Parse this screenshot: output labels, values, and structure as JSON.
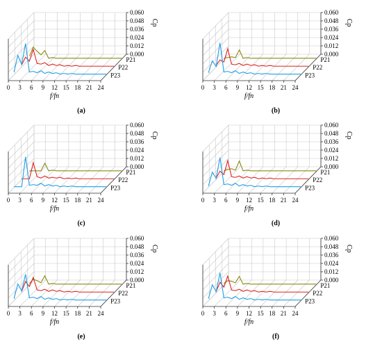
{
  "layout_common": {
    "type": "line",
    "x_ticks": [
      "0",
      "3",
      "6",
      "9",
      "12",
      "15",
      "18",
      "21",
      "24"
    ],
    "z_ticks": [
      "0.060",
      "0.048",
      "0.036",
      "0.024",
      "0.012",
      "0.000"
    ],
    "xlabel": "f/fn",
    "zlabel": "Cp",
    "series_labels": [
      "P21",
      "P22",
      "P23"
    ]
  },
  "series_colors": {
    "P21": "#8a8a10",
    "P22": "#e02020",
    "P23": "#1e9ee6"
  },
  "chart_data": [
    {
      "type": "line",
      "caption": "(a)",
      "xlabel": "f/fn",
      "zlabel": "Cp",
      "xlim": [
        0,
        24
      ],
      "zlim": [
        0,
        0.06
      ],
      "series": [
        {
          "name": "P21",
          "x": [
            0,
            1,
            2,
            3,
            4,
            5,
            6,
            7,
            8,
            9,
            10,
            11,
            12,
            13,
            14,
            15,
            16,
            17,
            18,
            19,
            20,
            21,
            22,
            23,
            24
          ],
          "values": [
            0.004,
            0.017,
            0.011,
            0.006,
            0.012,
            0.001,
            0.002,
            0.001,
            0.001,
            0.001,
            0.001,
            0.001,
            0.001,
            0.001,
            0.001,
            0.001,
            0.001,
            0.001,
            0.001,
            0.001,
            0.001,
            0.001,
            0.001,
            0.001,
            0.001
          ]
        },
        {
          "name": "P22",
          "x": [
            0,
            1,
            2,
            3,
            4,
            5,
            6,
            7,
            8,
            9,
            10,
            11,
            12,
            13,
            14,
            15,
            16,
            17,
            18,
            19,
            20,
            21,
            22,
            23,
            24
          ],
          "values": [
            0.003,
            0.014,
            0.008,
            0.025,
            0.005,
            0.004,
            0.006,
            0.002,
            0.004,
            0.002,
            0.003,
            0.001,
            0.002,
            0.001,
            0.002,
            0.001,
            0.001,
            0.001,
            0.001,
            0.001,
            0.001,
            0.001,
            0.001,
            0.001,
            0.001
          ]
        },
        {
          "name": "P23",
          "x": [
            0,
            1,
            2,
            3,
            4,
            5,
            6,
            7,
            8,
            9,
            10,
            11,
            12,
            13,
            14,
            15,
            16,
            17,
            18,
            19,
            20,
            21,
            22,
            23,
            24
          ],
          "values": [
            0.004,
            0.028,
            0.015,
            0.045,
            0.004,
            0.005,
            0.003,
            0.006,
            0.002,
            0.004,
            0.002,
            0.003,
            0.001,
            0.002,
            0.001,
            0.002,
            0.001,
            0.001,
            0.001,
            0.001,
            0.001,
            0.001,
            0.001,
            0.001,
            0.001
          ]
        }
      ]
    },
    {
      "type": "line",
      "caption": "(b)",
      "xlabel": "f/fn",
      "zlabel": "Cp",
      "xlim": [
        0,
        24
      ],
      "zlim": [
        0,
        0.06
      ],
      "series": [
        {
          "name": "P21",
          "x": [
            0,
            1,
            2,
            3,
            4,
            5,
            6,
            7,
            8,
            9,
            10,
            11,
            12,
            13,
            14,
            15,
            16,
            17,
            18,
            19,
            20,
            21,
            22,
            23,
            24
          ],
          "values": [
            0.001,
            0.002,
            0.003,
            0.002,
            0.013,
            0.001,
            0.002,
            0.001,
            0.001,
            0.001,
            0.001,
            0.001,
            0.001,
            0.001,
            0.001,
            0.001,
            0.001,
            0.001,
            0.001,
            0.001,
            0.001,
            0.001,
            0.001,
            0.001,
            0.001
          ]
        },
        {
          "name": "P22",
          "x": [
            0,
            1,
            2,
            3,
            4,
            5,
            6,
            7,
            8,
            9,
            10,
            11,
            12,
            13,
            14,
            15,
            16,
            17,
            18,
            19,
            20,
            21,
            22,
            23,
            24
          ],
          "values": [
            0.002,
            0.01,
            0.007,
            0.026,
            0.004,
            0.003,
            0.005,
            0.002,
            0.004,
            0.002,
            0.003,
            0.001,
            0.002,
            0.001,
            0.002,
            0.001,
            0.001,
            0.001,
            0.001,
            0.001,
            0.001,
            0.001,
            0.001,
            0.001,
            0.001
          ]
        },
        {
          "name": "P23",
          "x": [
            0,
            1,
            2,
            3,
            4,
            5,
            6,
            7,
            8,
            9,
            10,
            11,
            12,
            13,
            14,
            15,
            16,
            17,
            18,
            19,
            20,
            21,
            22,
            23,
            24
          ],
          "values": [
            0.003,
            0.02,
            0.012,
            0.046,
            0.004,
            0.005,
            0.003,
            0.006,
            0.002,
            0.004,
            0.002,
            0.003,
            0.001,
            0.002,
            0.001,
            0.002,
            0.001,
            0.001,
            0.001,
            0.001,
            0.001,
            0.001,
            0.001,
            0.001,
            0.001
          ]
        }
      ]
    },
    {
      "type": "line",
      "caption": "(c)",
      "xlabel": "f/fn",
      "zlabel": "Cp",
      "xlim": [
        0,
        24
      ],
      "zlim": [
        0,
        0.06
      ],
      "series": [
        {
          "name": "P21",
          "x": [
            0,
            1,
            2,
            3,
            4,
            5,
            6,
            7,
            8,
            9,
            10,
            11,
            12,
            13,
            14,
            15,
            16,
            17,
            18,
            19,
            20,
            21,
            22,
            23,
            24
          ],
          "values": [
            0.001,
            0.001,
            0.001,
            0.001,
            0.012,
            0.001,
            0.002,
            0.001,
            0.001,
            0.001,
            0.001,
            0.001,
            0.001,
            0.001,
            0.001,
            0.001,
            0.001,
            0.001,
            0.001,
            0.001,
            0.001,
            0.001,
            0.001,
            0.001,
            0.001
          ]
        },
        {
          "name": "P22",
          "x": [
            0,
            1,
            2,
            3,
            4,
            5,
            6,
            7,
            8,
            9,
            10,
            11,
            12,
            13,
            14,
            15,
            16,
            17,
            18,
            19,
            20,
            21,
            22,
            23,
            24
          ],
          "values": [
            0.001,
            0.001,
            0.001,
            0.024,
            0.004,
            0.002,
            0.005,
            0.002,
            0.003,
            0.002,
            0.003,
            0.001,
            0.002,
            0.001,
            0.002,
            0.001,
            0.001,
            0.001,
            0.001,
            0.001,
            0.001,
            0.001,
            0.001,
            0.001,
            0.001
          ]
        },
        {
          "name": "P23",
          "x": [
            0,
            1,
            2,
            3,
            4,
            5,
            6,
            7,
            8,
            9,
            10,
            11,
            12,
            13,
            14,
            15,
            16,
            17,
            18,
            19,
            20,
            21,
            22,
            23,
            24
          ],
          "values": [
            0.001,
            0.001,
            0.001,
            0.044,
            0.003,
            0.004,
            0.003,
            0.006,
            0.002,
            0.004,
            0.002,
            0.003,
            0.001,
            0.002,
            0.001,
            0.002,
            0.001,
            0.001,
            0.001,
            0.001,
            0.001,
            0.001,
            0.001,
            0.001,
            0.001
          ]
        }
      ]
    },
    {
      "type": "line",
      "caption": "(d)",
      "xlabel": "f/fn",
      "zlabel": "Cp",
      "xlim": [
        0,
        24
      ],
      "zlim": [
        0,
        0.06
      ],
      "series": [
        {
          "name": "P21",
          "x": [
            0,
            1,
            2,
            3,
            4,
            5,
            6,
            7,
            8,
            9,
            10,
            11,
            12,
            13,
            14,
            15,
            16,
            17,
            18,
            19,
            20,
            21,
            22,
            23,
            24
          ],
          "values": [
            0.001,
            0.003,
            0.004,
            0.002,
            0.015,
            0.001,
            0.002,
            0.001,
            0.001,
            0.001,
            0.001,
            0.001,
            0.001,
            0.001,
            0.001,
            0.001,
            0.001,
            0.001,
            0.001,
            0.001,
            0.001,
            0.001,
            0.001,
            0.001,
            0.001
          ]
        },
        {
          "name": "P22",
          "x": [
            0,
            1,
            2,
            3,
            4,
            5,
            6,
            7,
            8,
            9,
            10,
            11,
            12,
            13,
            14,
            15,
            16,
            17,
            18,
            19,
            20,
            21,
            22,
            23,
            24
          ],
          "values": [
            0.002,
            0.012,
            0.007,
            0.027,
            0.004,
            0.003,
            0.005,
            0.002,
            0.004,
            0.002,
            0.003,
            0.001,
            0.002,
            0.001,
            0.002,
            0.001,
            0.001,
            0.001,
            0.001,
            0.001,
            0.001,
            0.001,
            0.001,
            0.001,
            0.001
          ]
        },
        {
          "name": "P23",
          "x": [
            0,
            1,
            2,
            3,
            4,
            5,
            6,
            7,
            8,
            9,
            10,
            11,
            12,
            13,
            14,
            15,
            16,
            17,
            18,
            19,
            20,
            21,
            22,
            23,
            24
          ],
          "values": [
            0.002,
            0.022,
            0.013,
            0.043,
            0.004,
            0.005,
            0.003,
            0.006,
            0.002,
            0.004,
            0.002,
            0.003,
            0.001,
            0.002,
            0.001,
            0.002,
            0.001,
            0.001,
            0.001,
            0.001,
            0.001,
            0.001,
            0.001,
            0.001,
            0.001
          ]
        }
      ]
    },
    {
      "type": "line",
      "caption": "(e)",
      "xlabel": "f/fn",
      "zlabel": "Cp",
      "xlim": [
        0,
        24
      ],
      "zlim": [
        0,
        0.06
      ],
      "series": [
        {
          "name": "P21",
          "x": [
            0,
            1,
            2,
            3,
            4,
            5,
            6,
            7,
            8,
            9,
            10,
            11,
            12,
            13,
            14,
            15,
            16,
            17,
            18,
            19,
            20,
            21,
            22,
            23,
            24
          ],
          "values": [
            0.002,
            0.008,
            0.006,
            0.003,
            0.013,
            0.001,
            0.002,
            0.001,
            0.001,
            0.001,
            0.001,
            0.001,
            0.001,
            0.001,
            0.001,
            0.001,
            0.001,
            0.001,
            0.001,
            0.001,
            0.001,
            0.001,
            0.001,
            0.001,
            0.001
          ]
        },
        {
          "name": "P22",
          "x": [
            0,
            1,
            2,
            3,
            4,
            5,
            6,
            7,
            8,
            9,
            10,
            11,
            12,
            13,
            14,
            15,
            16,
            17,
            18,
            19,
            20,
            21,
            22,
            23,
            24
          ],
          "values": [
            0.002,
            0.016,
            0.009,
            0.022,
            0.004,
            0.003,
            0.005,
            0.002,
            0.004,
            0.002,
            0.003,
            0.001,
            0.002,
            0.001,
            0.002,
            0.001,
            0.001,
            0.001,
            0.001,
            0.001,
            0.001,
            0.001,
            0.001,
            0.001,
            0.001
          ]
        },
        {
          "name": "P23",
          "x": [
            0,
            1,
            2,
            3,
            4,
            5,
            6,
            7,
            8,
            9,
            10,
            11,
            12,
            13,
            14,
            15,
            16,
            17,
            18,
            19,
            20,
            21,
            22,
            23,
            24
          ],
          "values": [
            0.003,
            0.024,
            0.014,
            0.038,
            0.004,
            0.005,
            0.003,
            0.006,
            0.002,
            0.004,
            0.002,
            0.003,
            0.001,
            0.002,
            0.001,
            0.002,
            0.001,
            0.001,
            0.001,
            0.001,
            0.001,
            0.001,
            0.001,
            0.001,
            0.001
          ]
        }
      ]
    },
    {
      "type": "line",
      "caption": "(f)",
      "xlabel": "f/fn",
      "zlabel": "Cp",
      "xlim": [
        0,
        24
      ],
      "zlim": [
        0,
        0.06
      ],
      "series": [
        {
          "name": "P21",
          "x": [
            0,
            1,
            2,
            3,
            4,
            5,
            6,
            7,
            8,
            9,
            10,
            11,
            12,
            13,
            14,
            15,
            16,
            17,
            18,
            19,
            20,
            21,
            22,
            23,
            24
          ],
          "values": [
            0.002,
            0.006,
            0.005,
            0.003,
            0.012,
            0.001,
            0.002,
            0.001,
            0.001,
            0.001,
            0.001,
            0.001,
            0.001,
            0.001,
            0.001,
            0.001,
            0.001,
            0.001,
            0.001,
            0.001,
            0.001,
            0.001,
            0.001,
            0.001,
            0.001
          ]
        },
        {
          "name": "P22",
          "x": [
            0,
            1,
            2,
            3,
            4,
            5,
            6,
            7,
            8,
            9,
            10,
            11,
            12,
            13,
            14,
            15,
            16,
            17,
            18,
            19,
            20,
            21,
            22,
            23,
            24
          ],
          "values": [
            0.002,
            0.015,
            0.008,
            0.024,
            0.004,
            0.003,
            0.005,
            0.002,
            0.004,
            0.002,
            0.003,
            0.001,
            0.002,
            0.001,
            0.002,
            0.001,
            0.001,
            0.001,
            0.001,
            0.001,
            0.001,
            0.001,
            0.001,
            0.001,
            0.001
          ]
        },
        {
          "name": "P23",
          "x": [
            0,
            1,
            2,
            3,
            4,
            5,
            6,
            7,
            8,
            9,
            10,
            11,
            12,
            13,
            14,
            15,
            16,
            17,
            18,
            19,
            20,
            21,
            22,
            23,
            24
          ],
          "values": [
            0.003,
            0.023,
            0.013,
            0.04,
            0.004,
            0.005,
            0.003,
            0.006,
            0.002,
            0.004,
            0.002,
            0.003,
            0.001,
            0.002,
            0.001,
            0.002,
            0.001,
            0.001,
            0.001,
            0.001,
            0.001,
            0.001,
            0.001,
            0.001,
            0.001
          ]
        }
      ]
    }
  ]
}
